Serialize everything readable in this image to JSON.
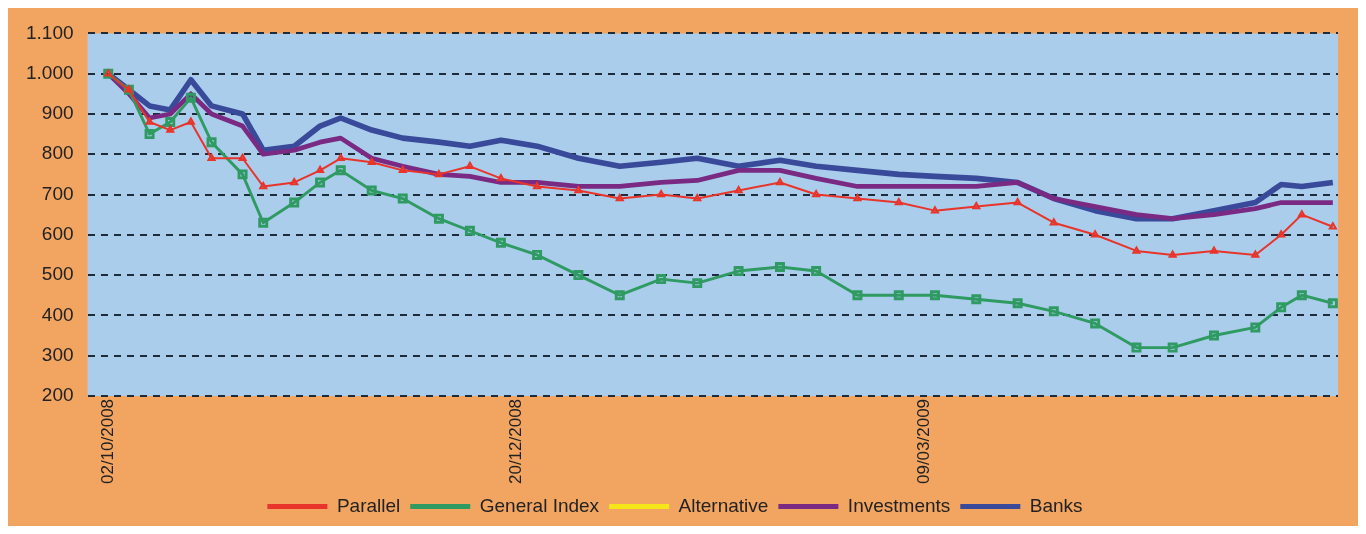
{
  "chart_data": {
    "type": "line",
    "x": [
      "2008-10-02",
      "2008-10-06",
      "2008-10-10",
      "2008-10-14",
      "2008-10-18",
      "2008-10-22",
      "2008-10-28",
      "2008-11-01",
      "2008-11-07",
      "2008-11-12",
      "2008-11-16",
      "2008-11-22",
      "2008-11-28",
      "2008-12-05",
      "2008-12-11",
      "2008-12-17",
      "2008-12-24",
      "2009-01-01",
      "2009-01-09",
      "2009-01-17",
      "2009-01-24",
      "2009-02-01",
      "2009-02-09",
      "2009-02-16",
      "2009-02-24",
      "2009-03-04",
      "2009-03-11",
      "2009-03-19",
      "2009-03-27",
      "2009-04-03",
      "2009-04-11",
      "2009-04-19",
      "2009-04-26",
      "2009-05-04",
      "2009-05-12",
      "2009-05-17",
      "2009-05-21",
      "2009-05-27"
    ],
    "series": [
      {
        "name": "Parallel",
        "color": "#e8342a",
        "marker": "triangle",
        "values": [
          1000,
          960,
          880,
          860,
          880,
          790,
          790,
          720,
          730,
          760,
          790,
          780,
          760,
          750,
          770,
          740,
          720,
          710,
          690,
          700,
          690,
          710,
          730,
          700,
          690,
          680,
          660,
          670,
          680,
          630,
          600,
          560,
          550,
          560,
          550,
          600,
          650,
          620
        ]
      },
      {
        "name": "General Index",
        "color": "#2f9a62",
        "marker": "square",
        "values": [
          1000,
          960,
          850,
          880,
          940,
          830,
          750,
          630,
          680,
          730,
          760,
          710,
          690,
          640,
          610,
          580,
          550,
          500,
          450,
          490,
          480,
          510,
          520,
          510,
          450,
          450,
          450,
          440,
          430,
          410,
          380,
          320,
          320,
          350,
          370,
          420,
          450,
          430
        ]
      },
      {
        "name": "Alternative",
        "color": "#f5e61a",
        "values": [
          null,
          null,
          null,
          null,
          null,
          null,
          null,
          null,
          null,
          null,
          null,
          null,
          null,
          null,
          null,
          null,
          null,
          null,
          null,
          null,
          null,
          null,
          null,
          null,
          null,
          null,
          null,
          null,
          null,
          null,
          null,
          null,
          null,
          null,
          null,
          null,
          null,
          null
        ]
      },
      {
        "name": "Investments",
        "color": "#7a2a82",
        "values": [
          1000,
          950,
          890,
          900,
          950,
          900,
          870,
          800,
          810,
          830,
          840,
          790,
          770,
          750,
          745,
          730,
          730,
          720,
          720,
          730,
          735,
          760,
          760,
          740,
          720,
          720,
          720,
          720,
          730,
          690,
          670,
          650,
          640,
          650,
          665,
          680,
          680,
          680
        ]
      },
      {
        "name": "Banks",
        "color": "#3a4a9a",
        "values": [
          1000,
          960,
          920,
          910,
          985,
          920,
          900,
          810,
          820,
          870,
          890,
          860,
          840,
          830,
          820,
          835,
          820,
          790,
          770,
          780,
          790,
          770,
          785,
          770,
          760,
          750,
          745,
          740,
          730,
          690,
          660,
          640,
          640,
          660,
          680,
          725,
          720,
          730
        ]
      }
    ],
    "xlim": [
      "2008-09-28",
      "2009-05-28"
    ],
    "xticks": [
      {
        "value": "2008-10-02",
        "label": "02/10/2008"
      },
      {
        "value": "2008-12-20",
        "label": "20/12/2008"
      },
      {
        "value": "2009-03-09",
        "label": "09/03/2009"
      }
    ],
    "ylim": [
      200,
      1100
    ],
    "yticks": [
      200,
      300,
      400,
      500,
      600,
      700,
      800,
      900,
      {
        "value": 1000,
        "label": "1.000"
      },
      {
        "value": 1100,
        "label": "1.100"
      }
    ],
    "grid": "y",
    "legend": "bottom",
    "line_style": "solid"
  }
}
